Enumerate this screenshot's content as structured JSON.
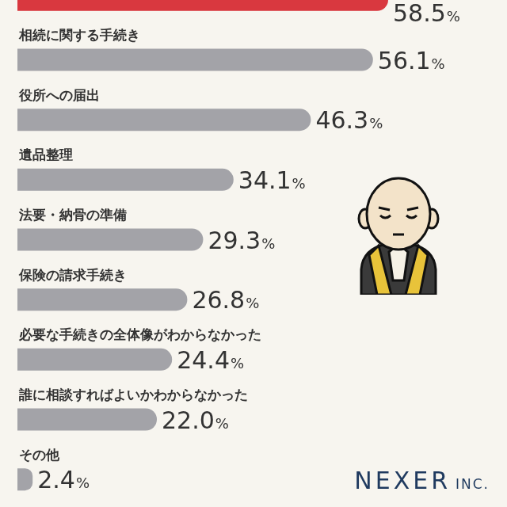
{
  "chart_data": {
    "type": "bar",
    "orientation": "horizontal",
    "categories": [
      null,
      "相続に関する手続き",
      "役所への届出",
      "遺品整理",
      "法要・納骨の準備",
      "保険の請求手続き",
      "必要な手続きの全体像がわからなかった",
      "誰に相談すればよいかわからなかった",
      "その他"
    ],
    "values": [
      58.5,
      56.1,
      46.3,
      34.1,
      29.3,
      26.8,
      24.4,
      22.0,
      2.4
    ],
    "value_labels": [
      "58.5%",
      "56.1%",
      "46.3%",
      "34.1%",
      "29.3%",
      "26.8%",
      "24.4%",
      "22.0%",
      "2.4%"
    ],
    "colors": [
      "#d9383f",
      "#a3a3a8",
      "#a3a3a8",
      "#a3a3a8",
      "#a3a3a8",
      "#a3a3a8",
      "#a3a3a8",
      "#a3a3a8",
      "#a3a3a8"
    ],
    "xlim": [
      0,
      75
    ],
    "grid": false,
    "tick_labels": false,
    "data_labels": true,
    "annotations": [
      "NEXER INC."
    ]
  }
}
